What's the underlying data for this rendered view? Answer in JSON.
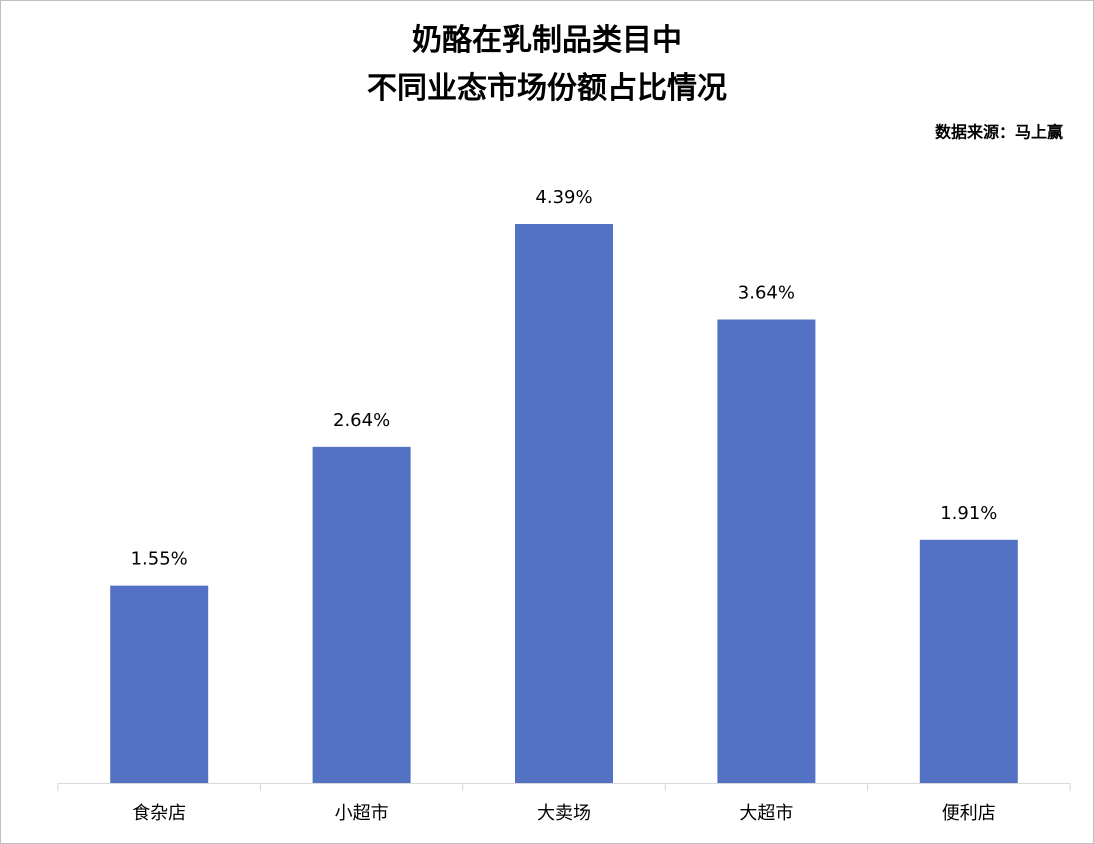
{
  "chart_data": {
    "type": "bar",
    "title": [
      "奶酪在乳制品类目中",
      "不同业态市场份额占比情况"
    ],
    "source": "数据来源：马上赢",
    "categories": [
      "食杂店",
      "小超市",
      "大卖场",
      "大超市",
      "便利店"
    ],
    "values": [
      1.55,
      2.64,
      4.39,
      3.64,
      1.91
    ],
    "value_labels": [
      "1.55%",
      "2.64%",
      "4.39%",
      "3.64%",
      "1.91%"
    ],
    "color": "#5472c4"
  }
}
